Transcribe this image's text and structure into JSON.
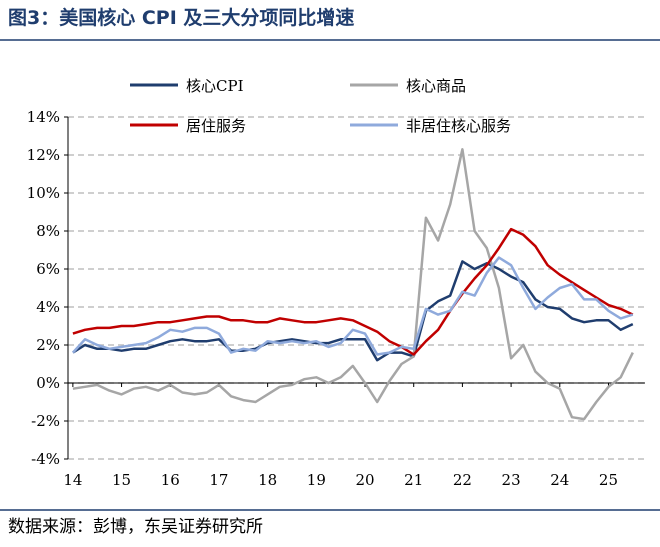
{
  "chart_data": {
    "type": "line",
    "title": "图3：美国核心 CPI 及三大分项同比增速",
    "source": "数据来源：彭博，东吴证券研究所",
    "x": [
      14,
      14.25,
      14.5,
      14.75,
      15,
      15.25,
      15.5,
      15.75,
      16,
      16.25,
      16.5,
      16.75,
      17,
      17.25,
      17.5,
      17.75,
      18,
      18.25,
      18.5,
      18.75,
      19,
      19.25,
      19.5,
      19.75,
      20,
      20.25,
      20.5,
      20.75,
      21,
      21.25,
      21.5,
      21.75,
      22,
      22.25,
      22.5,
      22.75,
      23,
      23.25,
      23.5,
      23.75,
      24,
      24.25,
      24.5,
      24.75,
      25,
      25.25,
      25.5
    ],
    "series": [
      {
        "name": "核心CPI",
        "color": "#1f3d6e",
        "values": [
          1.6,
          2.0,
          1.8,
          1.8,
          1.7,
          1.8,
          1.8,
          2.0,
          2.2,
          2.3,
          2.2,
          2.2,
          2.3,
          1.7,
          1.7,
          1.8,
          2.1,
          2.2,
          2.3,
          2.2,
          2.1,
          2.1,
          2.3,
          2.3,
          2.3,
          1.2,
          1.6,
          1.6,
          1.4,
          3.8,
          4.3,
          4.6,
          6.4,
          6.0,
          6.3,
          6.0,
          5.6,
          5.3,
          4.4,
          4.0,
          3.9,
          3.4,
          3.2,
          3.3,
          3.3,
          2.8,
          3.1
        ]
      },
      {
        "name": "核心商品",
        "color": "#a6a6a6",
        "values": [
          -0.3,
          -0.2,
          -0.1,
          -0.4,
          -0.6,
          -0.3,
          -0.2,
          -0.4,
          -0.1,
          -0.5,
          -0.6,
          -0.5,
          -0.1,
          -0.7,
          -0.9,
          -1.0,
          -0.6,
          -0.2,
          -0.1,
          0.2,
          0.3,
          0.0,
          0.3,
          0.9,
          0.0,
          -1.0,
          0.1,
          1.0,
          1.4,
          8.7,
          7.5,
          9.4,
          12.3,
          8.0,
          7.1,
          5.0,
          1.3,
          2.0,
          0.6,
          0.0,
          -0.3,
          -1.8,
          -1.9,
          -1.0,
          -0.2,
          0.3,
          1.6
        ]
      },
      {
        "name": "居住服务",
        "color": "#c00000",
        "values": [
          2.6,
          2.8,
          2.9,
          2.9,
          3.0,
          3.0,
          3.1,
          3.2,
          3.2,
          3.3,
          3.4,
          3.5,
          3.5,
          3.3,
          3.3,
          3.2,
          3.2,
          3.4,
          3.3,
          3.2,
          3.2,
          3.3,
          3.4,
          3.3,
          3.0,
          2.7,
          2.2,
          1.9,
          1.5,
          2.2,
          2.8,
          3.8,
          4.7,
          5.5,
          6.2,
          7.1,
          8.1,
          7.8,
          7.2,
          6.2,
          5.7,
          5.3,
          4.9,
          4.5,
          4.1,
          3.9,
          3.6
        ]
      },
      {
        "name": "非居住核心服务",
        "color": "#8faadc",
        "values": [
          1.6,
          2.3,
          2.0,
          1.8,
          1.9,
          2.0,
          2.1,
          2.4,
          2.8,
          2.7,
          2.9,
          2.9,
          2.6,
          1.6,
          1.8,
          1.7,
          2.2,
          2.1,
          2.2,
          2.1,
          2.2,
          1.9,
          2.1,
          2.8,
          2.6,
          1.5,
          1.6,
          1.9,
          1.8,
          3.9,
          3.6,
          3.8,
          4.8,
          4.6,
          5.8,
          6.6,
          6.2,
          5.0,
          3.9,
          4.5,
          5.0,
          5.2,
          4.4,
          4.4,
          3.8,
          3.4,
          3.6
        ]
      }
    ],
    "xlim": [
      13.9,
      25.75
    ],
    "xticks": [
      14,
      15,
      16,
      17,
      18,
      19,
      20,
      21,
      22,
      23,
      24,
      25
    ],
    "ylim": [
      -4,
      14
    ],
    "yticks": [
      {
        "value": -4,
        "label": "-4%"
      },
      {
        "value": -2,
        "label": "-2%"
      },
      {
        "value": 0,
        "label": "0%"
      },
      {
        "value": 2,
        "label": "2%"
      },
      {
        "value": 4,
        "label": "4%"
      },
      {
        "value": 6,
        "label": "6%"
      },
      {
        "value": 8,
        "label": "8%"
      },
      {
        "value": 10,
        "label": "10%"
      },
      {
        "value": 12,
        "label": "12%"
      },
      {
        "value": 14,
        "label": "14%"
      }
    ],
    "grid": true
  }
}
